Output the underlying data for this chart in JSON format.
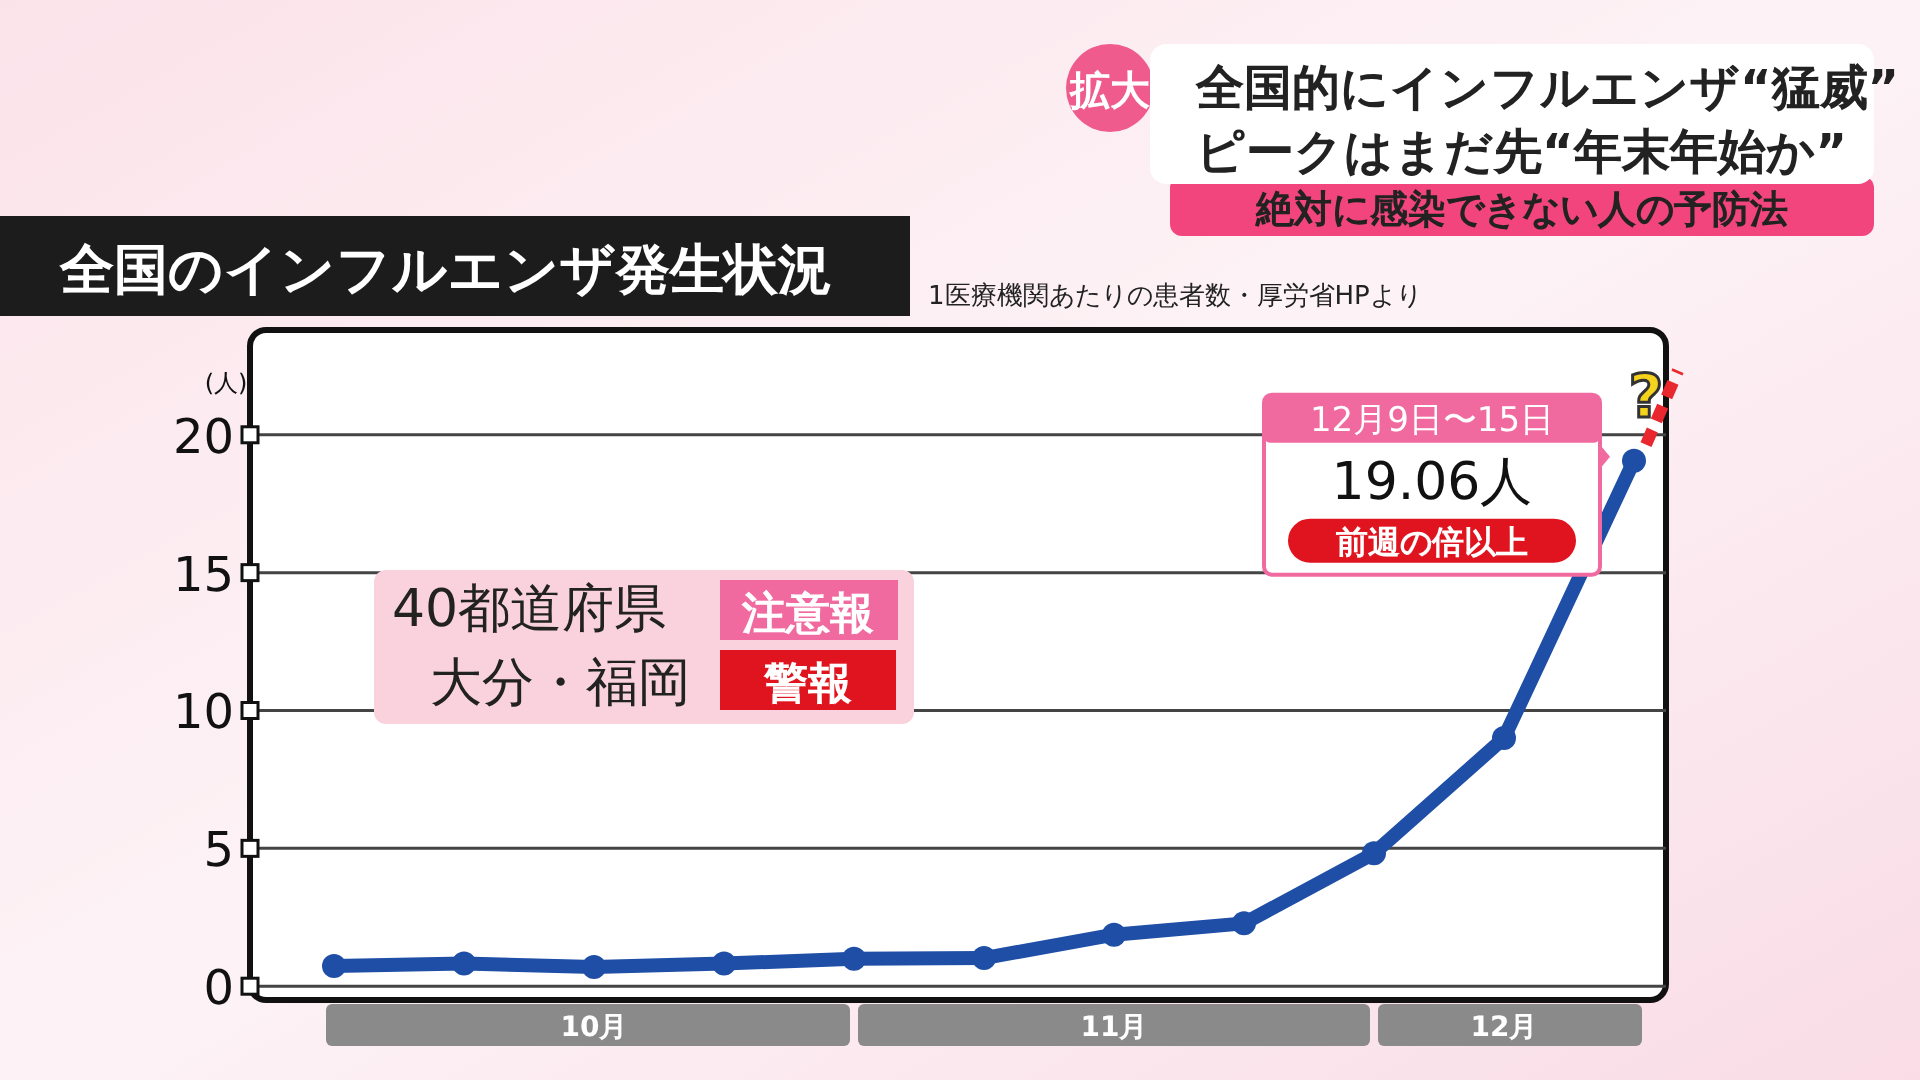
{
  "chart_data": {
    "type": "line",
    "title": "全国のインフルエンザ発生状況",
    "subtitle": "1医療機関あたりの患者数・厚労省HPより",
    "ylabel": "(人)",
    "categories": [
      null,
      null,
      "10月",
      null,
      null,
      null,
      "11月",
      null,
      null,
      "12月",
      null
    ],
    "series": [
      {
        "color": "#1e4ea6",
        "values": [
          0.73,
          0.82,
          0.7,
          0.82,
          1.0,
          1.02,
          1.87,
          2.28,
          4.82,
          9.0,
          19.06
        ],
        "value_labels": [
          null,
          null,
          null,
          null,
          null,
          null,
          null,
          null,
          null,
          null,
          "19.06人"
        ]
      }
    ],
    "ylim": [
      -0.5,
      23.8
    ],
    "yticks": [
      0,
      5,
      10,
      15,
      20
    ],
    "grid": "y",
    "marker": "circle",
    "annotations": [
      "拡大",
      "全国的にインフルエンザ“猛威”",
      "ピークはまだ先“年末年始か”",
      "絶対に感染できない人の予防法",
      "12月9日〜15日",
      "前週の倍以上",
      "40都道府県",
      "注意報",
      "大分・福岡",
      "警報",
      "?"
    ]
  }
}
